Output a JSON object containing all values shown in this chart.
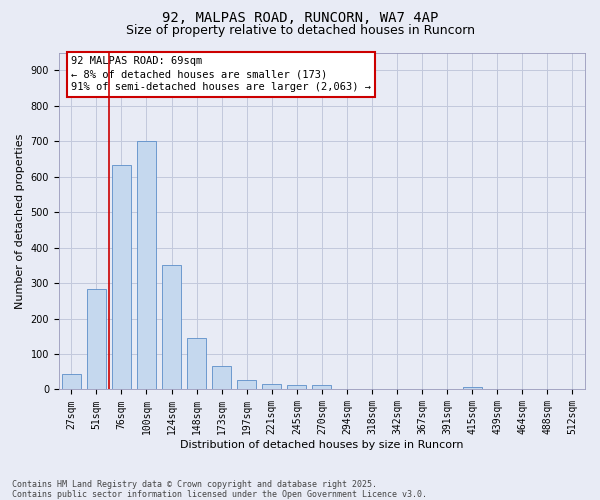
{
  "title_line1": "92, MALPAS ROAD, RUNCORN, WA7 4AP",
  "title_line2": "Size of property relative to detached houses in Runcorn",
  "xlabel": "Distribution of detached houses by size in Runcorn",
  "ylabel": "Number of detached properties",
  "footnote": "Contains HM Land Registry data © Crown copyright and database right 2025.\nContains public sector information licensed under the Open Government Licence v3.0.",
  "bar_color": "#c5d8ee",
  "bar_edge_color": "#5b8ec9",
  "annotation_box_edgecolor": "#cc0000",
  "vline_color": "#cc0000",
  "annotation_text": "92 MALPAS ROAD: 69sqm\n← 8% of detached houses are smaller (173)\n91% of semi-detached houses are larger (2,063) →",
  "vline_x_index": 1.5,
  "categories": [
    "27sqm",
    "51sqm",
    "76sqm",
    "100sqm",
    "124sqm",
    "148sqm",
    "173sqm",
    "197sqm",
    "221sqm",
    "245sqm",
    "270sqm",
    "294sqm",
    "318sqm",
    "342sqm",
    "367sqm",
    "391sqm",
    "415sqm",
    "439sqm",
    "464sqm",
    "488sqm",
    "512sqm"
  ],
  "values": [
    43,
    283,
    632,
    700,
    350,
    145,
    67,
    28,
    15,
    12,
    12,
    0,
    0,
    0,
    0,
    0,
    8,
    0,
    0,
    0,
    0
  ],
  "ylim": [
    0,
    950
  ],
  "yticks": [
    0,
    100,
    200,
    300,
    400,
    500,
    600,
    700,
    800,
    900
  ],
  "grid_color": "#c2c8dc",
  "bg_color": "#e8ebf5",
  "title1_fontsize": 10,
  "title2_fontsize": 9,
  "axis_label_fontsize": 8,
  "tick_fontsize": 7,
  "annotation_fontsize": 7.5,
  "footnote_fontsize": 6
}
